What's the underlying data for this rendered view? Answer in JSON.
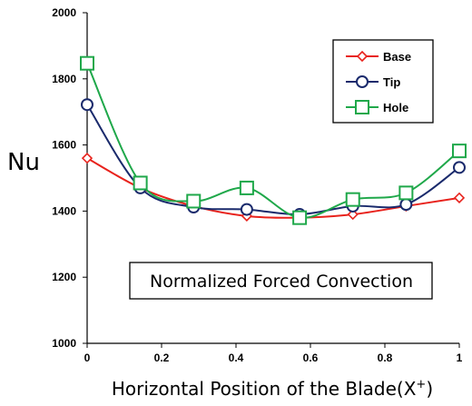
{
  "chart_data": {
    "type": "line",
    "ylabel": "Nu",
    "xlabel": "Horizontal Position of the Blade(X",
    "xlabel_sup": "+",
    "xlabel_tail": ")",
    "annotation": "Normalized Forced Convection",
    "xlim": [
      0,
      1
    ],
    "ylim": [
      1000,
      2000
    ],
    "xticks": [
      0,
      0.2,
      0.4,
      0.6,
      0.8,
      1
    ],
    "xtick_labels": [
      "0",
      "0.2",
      "0.4",
      "0.6",
      "0.8",
      "1"
    ],
    "yticks": [
      1000,
      1200,
      1400,
      1600,
      1800,
      2000
    ],
    "ytick_labels": [
      "1000",
      "1200",
      "1400",
      "1600",
      "1800",
      "2000"
    ],
    "grid": false,
    "legend_position": "top-right",
    "x": [
      0,
      0.143,
      0.286,
      0.429,
      0.571,
      0.714,
      0.857,
      1
    ],
    "series": [
      {
        "name": "Base",
        "color": "#e8221c",
        "marker": "diamond",
        "values": [
          1560,
          1470,
          1415,
          1385,
          1380,
          1390,
          1415,
          1440
        ]
      },
      {
        "name": "Tip",
        "color": "#1a2a6c",
        "marker": "circle",
        "values": [
          1722,
          1470,
          1412,
          1405,
          1390,
          1415,
          1420,
          1532
        ]
      },
      {
        "name": "Hole",
        "color": "#1fa84a",
        "marker": "square",
        "values": [
          1847,
          1485,
          1430,
          1470,
          1380,
          1435,
          1455,
          1582
        ]
      }
    ]
  }
}
